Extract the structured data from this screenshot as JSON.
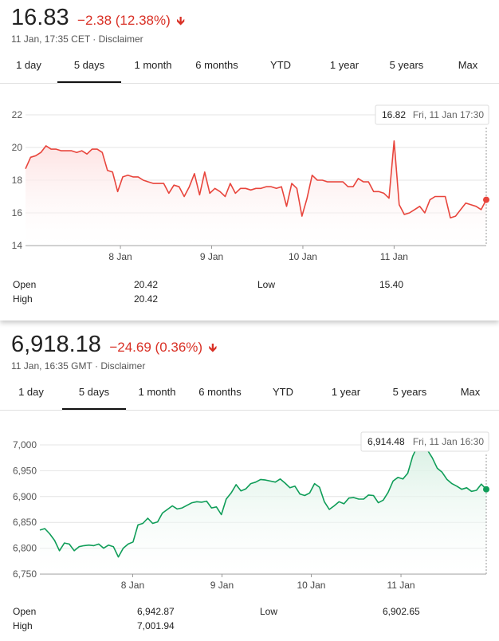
{
  "panels": [
    {
      "price": "16.83",
      "change": "−2.38 (12.38%)",
      "change_color": "#d93025",
      "timestamp": "11 Jan, 17:35 CET",
      "disclaimer": "Disclaimer",
      "tabs": [
        "1 day",
        "5 days",
        "1 month",
        "6 months",
        "YTD",
        "1 year",
        "5 years",
        "Max"
      ],
      "active_tab": "5 days",
      "tooltip_value": "16.82",
      "tooltip_time": "Fri, 11 Jan 17:30",
      "stats": {
        "open_label": "Open",
        "open": "20.42",
        "high_label": "High",
        "high": "20.42",
        "low_label": "Low",
        "low": "15.40"
      }
    },
    {
      "price": "6,918.18",
      "change": "−24.69 (0.36%)",
      "change_color": "#d93025",
      "timestamp": "11 Jan, 16:35 GMT",
      "disclaimer": "Disclaimer",
      "tabs": [
        "1 day",
        "5 days",
        "1 month",
        "6 months",
        "YTD",
        "1 year",
        "5 years",
        "Max"
      ],
      "active_tab": "5 days",
      "tooltip_value": "6,914.48",
      "tooltip_time": "Fri, 11 Jan 16:30",
      "stats": {
        "open_label": "Open",
        "open": "6,942.87",
        "high_label": "High",
        "high": "7,001.94",
        "low_label": "Low",
        "low": "6,902.65"
      }
    }
  ],
  "chart_data": [
    {
      "type": "area",
      "color": "#e8453c",
      "fill_color": "#fde0e0",
      "ylim": [
        14,
        22
      ],
      "yticks": [
        14,
        16,
        18,
        20,
        22
      ],
      "xlim": [
        0,
        100
      ],
      "x_tick_labels": [
        {
          "label": "8 Jan",
          "x": 20.6
        },
        {
          "label": "9 Jan",
          "x": 40.4
        },
        {
          "label": "10 Jan",
          "x": 60.2
        },
        {
          "label": "11 Jan",
          "x": 80.0
        }
      ],
      "values": [
        18.7,
        19.4,
        19.5,
        19.7,
        20.1,
        19.9,
        19.9,
        19.8,
        19.8,
        19.8,
        19.7,
        19.8,
        19.6,
        19.9,
        19.9,
        19.7,
        18.6,
        18.5,
        17.3,
        18.2,
        18.3,
        18.2,
        18.2,
        18.0,
        17.9,
        17.8,
        17.8,
        17.8,
        17.2,
        17.7,
        17.6,
        17.0,
        17.6,
        18.4,
        17.1,
        18.5,
        17.2,
        17.5,
        17.3,
        17.0,
        17.8,
        17.2,
        17.5,
        17.5,
        17.4,
        17.5,
        17.5,
        17.6,
        17.6,
        17.5,
        17.6,
        16.4,
        17.8,
        17.5,
        15.8,
        16.9,
        18.3,
        18.0,
        18.0,
        17.9,
        17.9,
        17.9,
        17.9,
        17.6,
        17.6,
        18.1,
        17.9,
        17.9,
        17.3,
        17.3,
        17.2,
        16.9,
        20.4,
        16.5,
        15.9,
        16.0,
        16.2,
        16.4,
        16.0,
        16.8,
        17.0,
        17.0,
        17.0,
        15.7,
        15.8,
        16.2,
        16.6,
        16.5,
        16.4,
        16.2,
        16.8
      ],
      "tooltip_point": {
        "value": 16.82
      },
      "dashed_line_x": 100
    },
    {
      "type": "area",
      "color": "#0f9d58",
      "fill_color": "#d8f0e3",
      "ylim": [
        6750,
        7000
      ],
      "yticks": [
        6750,
        6800,
        6850,
        6900,
        6950,
        7000
      ],
      "xlim": [
        0,
        100
      ],
      "x_tick_labels": [
        {
          "label": "8 Jan",
          "x": 20.8
        },
        {
          "label": "9 Jan",
          "x": 40.8
        },
        {
          "label": "10 Jan",
          "x": 60.8
        },
        {
          "label": "11 Jan",
          "x": 80.9
        }
      ],
      "values": [
        6835,
        6838,
        6828,
        6815,
        6795,
        6810,
        6808,
        6795,
        6803,
        6805,
        6806,
        6805,
        6808,
        6800,
        6806,
        6803,
        6783,
        6800,
        6808,
        6812,
        6845,
        6848,
        6858,
        6848,
        6851,
        6868,
        6875,
        6882,
        6876,
        6878,
        6883,
        6888,
        6890,
        6889,
        6891,
        6878,
        6880,
        6865,
        6895,
        6907,
        6923,
        6911,
        6915,
        6925,
        6928,
        6933,
        6932,
        6930,
        6928,
        6934,
        6926,
        6917,
        6920,
        6905,
        6902,
        6907,
        6925,
        6918,
        6890,
        6875,
        6882,
        6890,
        6886,
        6897,
        6898,
        6895,
        6895,
        6903,
        6902,
        6888,
        6893,
        6908,
        6930,
        6937,
        6934,
        6945,
        6978,
        6998,
        7003,
        6990,
        6975,
        6955,
        6947,
        6933,
        6925,
        6920,
        6914,
        6917,
        6910,
        6912,
        6924,
        6914
      ],
      "tooltip_point": {
        "value": 6914.48
      },
      "dashed_line_x": 100
    }
  ]
}
